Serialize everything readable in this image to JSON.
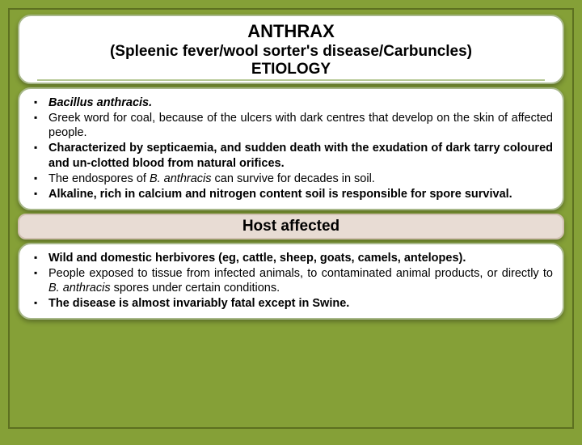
{
  "colors": {
    "slide_bg": "#85a037",
    "slide_border": "#5d7020",
    "card_bg": "#ffffff",
    "card_border": "#a8b88a",
    "host_header_bg": "#e8dcd4",
    "text": "#000000"
  },
  "title": {
    "main": "ANTHRAX",
    "sub": "(Spleenic fever/wool sorter's disease/Carbuncles)"
  },
  "sections": {
    "etiology": {
      "header": "ETIOLOGY",
      "items": [
        {
          "html": "<span class='italic bold'>Bacillus anthracis.</span>"
        },
        {
          "html": "Greek word for coal, because of the ulcers with dark centres that develop on the skin of affected people."
        },
        {
          "html": "<span class='bold'>Characterized by septicaemia, and sudden death with the exudation of dark tarry coloured and un-clotted blood from natural orifices.</span>"
        },
        {
          "html": "The endospores of <span class='italic'>B. anthracis</span> can survive for decades in soil."
        },
        {
          "html": "<span class='bold'>Alkaline, rich in calcium and nitrogen content soil is responsible for spore survival.</span>"
        }
      ]
    },
    "host": {
      "header": "Host affected",
      "items": [
        {
          "html": "<span class='bold'>Wild and domestic herbivores (eg, cattle, sheep, goats, camels, antelopes).</span>"
        },
        {
          "html": "People exposed to tissue from infected animals, to contaminated animal products, or directly to <span class='italic'>B. anthracis</span> spores under certain conditions."
        },
        {
          "html": "<span class='bold'>The disease is almost invariably fatal except in Swine.</span>"
        }
      ]
    }
  }
}
